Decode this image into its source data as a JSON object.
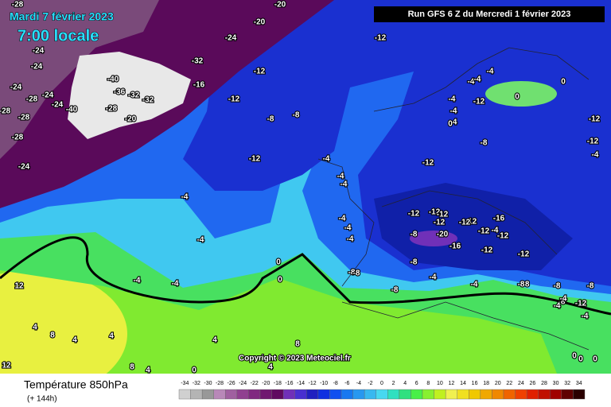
{
  "header": {
    "date": "Mardi 7 février 2023",
    "time": "7:00 locale",
    "run": "Run GFS 6 Z du Mercredi 1 février 2023"
  },
  "map": {
    "copyright": "Copyright © 2023 Meteociel.fr",
    "contour_labels": [
      "-28",
      "-20",
      "-24",
      "-20",
      "-24",
      "-24",
      "-24",
      "-28",
      "-24",
      "-24",
      "-28",
      "-28",
      "-28",
      "-24",
      "-40",
      "-36",
      "-32",
      "-40",
      "-32",
      "-28",
      "-32",
      "-20",
      "-16",
      "-12",
      "-12",
      "-12",
      "-8",
      "-8",
      "-12",
      "-12",
      "-4",
      "-4",
      "-4",
      "-4",
      "-4",
      "-4",
      "-4",
      "0",
      "-4",
      "-4",
      "-4",
      "-8",
      "-8",
      "-12",
      "-8",
      "-12",
      "-12",
      "-12",
      "-12",
      "-16",
      "-20",
      "-16",
      "-12",
      "-12",
      "-12",
      "-8",
      "-12",
      "-8",
      "-8",
      "-4",
      "-8",
      "-4",
      "0",
      "4",
      "8",
      "4",
      "4",
      "4",
      "0",
      "12",
      "8",
      "4",
      "8",
      "12",
      "4",
      "-4",
      "-4",
      "0",
      "-4",
      "-4",
      "-4",
      "-8",
      "-12",
      "-4",
      "-12",
      "-12",
      "-8",
      "-4",
      "-4",
      "-4",
      "-8",
      "-8",
      "-4",
      "-12",
      "-12",
      "-4",
      "0",
      "0",
      "0",
      "0",
      "0"
    ]
  },
  "legend": {
    "title": "Température 850hPa",
    "subtitle": "(+ 144h)",
    "scale": {
      "values": [
        -34,
        -32,
        -30,
        -28,
        -26,
        -24,
        -22,
        -20,
        -18,
        -16,
        -14,
        -12,
        -10,
        -8,
        -6,
        -4,
        -2,
        0,
        2,
        4,
        6,
        8,
        10,
        12,
        14,
        16,
        18,
        20,
        22,
        24,
        26,
        28,
        30,
        32,
        34
      ],
      "colors": [
        "#d0d0d0",
        "#b4b4b4",
        "#989898",
        "#b888b8",
        "#a060a0",
        "#904090",
        "#802880",
        "#701870",
        "#600a60",
        "#7030b8",
        "#4830d0",
        "#2020c0",
        "#1030e0",
        "#1050f0",
        "#1878f0",
        "#2898f0",
        "#38b8f0",
        "#48d8f0",
        "#30e0c0",
        "#30e080",
        "#48f048",
        "#88f030",
        "#c0f020",
        "#f0f050",
        "#f0e020",
        "#f0c800",
        "#f0a800",
        "#f08800",
        "#f06400",
        "#f04000",
        "#e02000",
        "#c01000",
        "#a00000",
        "#600000",
        "#2a0000"
      ]
    }
  }
}
